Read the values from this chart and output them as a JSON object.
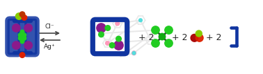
{
  "bg_color": "#ffffff",
  "blue": "#1035a0",
  "purple": "#8b1a8b",
  "green": "#22cc22",
  "lime": "#88cc00",
  "dark_red": "#990000",
  "bright_red": "#dd2200",
  "pink": "#ff99bb",
  "cyan": "#55dddd",
  "light_gray": "#cccccc",
  "white_line": "#e8e8e8",
  "text_color": "#222222",
  "cl_label": "Cl⁻",
  "ag_label": "Ag⁺",
  "figwidth": 3.78,
  "figheight": 1.07,
  "dpi": 100
}
